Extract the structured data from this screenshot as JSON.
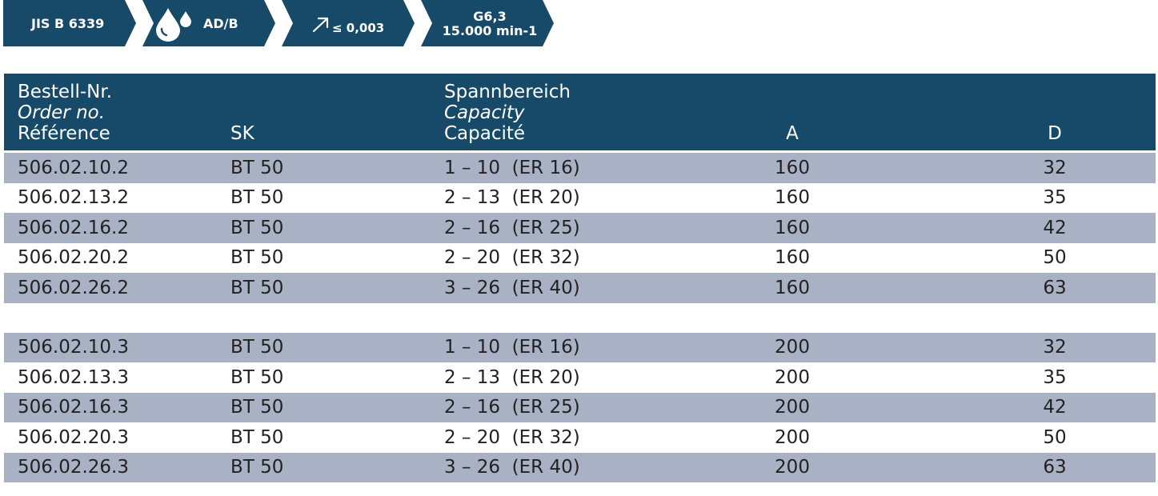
{
  "badges": {
    "standard": "JIS B 6339",
    "coolant": "AD/B",
    "runout": "≤ 0,003",
    "balance_grade": "G6,3",
    "balance_speed": "15.000 min-1",
    "colors": {
      "badge": "#174a68",
      "icon": "#ffffff"
    },
    "icons": {
      "coolant": "coolant-drops-icon",
      "runout": "runout-arrow-icon"
    }
  },
  "table": {
    "colors": {
      "header_bg": "#174a68",
      "shade_row": "#a9b1c4",
      "text": "#222222"
    },
    "header": {
      "order_de": "Bestell-Nr.",
      "order_en": "Order no.",
      "order_fr": "Référence",
      "sk": "SK",
      "cap_de": "Spannbereich",
      "cap_en": "Capacity",
      "cap_fr": "Capacité",
      "a": "A",
      "d": "D"
    },
    "group1": [
      {
        "order": "506.02.10.2",
        "sk": "BT 50",
        "capacity": "1 – 10  (ER 16)",
        "a": "160",
        "d": "32"
      },
      {
        "order": "506.02.13.2",
        "sk": "BT 50",
        "capacity": "2 – 13  (ER 20)",
        "a": "160",
        "d": "35"
      },
      {
        "order": "506.02.16.2",
        "sk": "BT 50",
        "capacity": "2 – 16  (ER 25)",
        "a": "160",
        "d": "42"
      },
      {
        "order": "506.02.20.2",
        "sk": "BT 50",
        "capacity": "2 – 20  (ER 32)",
        "a": "160",
        "d": "50"
      },
      {
        "order": "506.02.26.2",
        "sk": "BT 50",
        "capacity": "3 – 26  (ER 40)",
        "a": "160",
        "d": "63"
      }
    ],
    "group2": [
      {
        "order": "506.02.10.3",
        "sk": "BT 50",
        "capacity": "1 – 10  (ER 16)",
        "a": "200",
        "d": "32"
      },
      {
        "order": "506.02.13.3",
        "sk": "BT 50",
        "capacity": "2 – 13  (ER 20)",
        "a": "200",
        "d": "35"
      },
      {
        "order": "506.02.16.3",
        "sk": "BT 50",
        "capacity": "2 – 16  (ER 25)",
        "a": "200",
        "d": "42"
      },
      {
        "order": "506.02.20.3",
        "sk": "BT 50",
        "capacity": "2 – 20  (ER 32)",
        "a": "200",
        "d": "50"
      },
      {
        "order": "506.02.26.3",
        "sk": "BT 50",
        "capacity": "3 – 26  (ER 40)",
        "a": "200",
        "d": "63"
      }
    ]
  }
}
